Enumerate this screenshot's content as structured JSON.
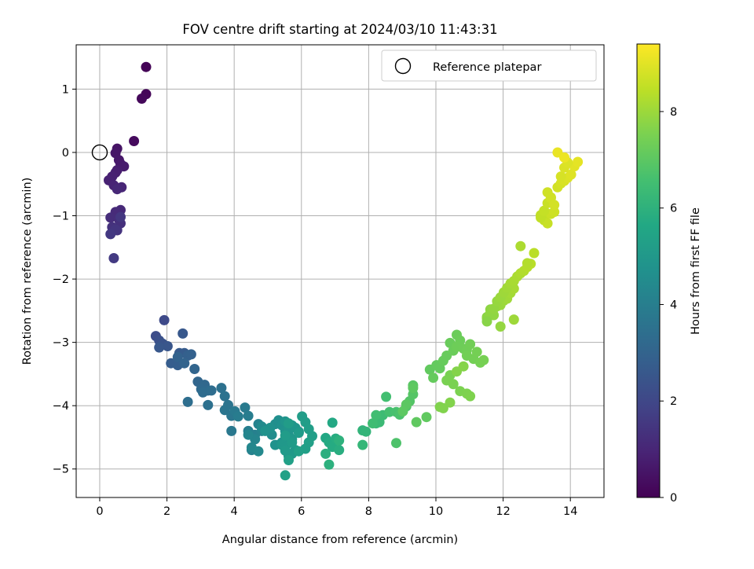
{
  "chart_data": {
    "type": "scatter",
    "title": "FOV centre drift starting at 2024/03/10 11:43:31",
    "xlabel": "Angular distance from reference (arcmin)",
    "ylabel": "Rotation from reference (arcmin)",
    "xlim": [
      -0.7,
      15.0
    ],
    "ylim": [
      -5.45,
      1.7
    ],
    "xticks": [
      0,
      2,
      4,
      6,
      8,
      10,
      12,
      14
    ],
    "yticks": [
      1,
      0,
      -1,
      -2,
      -3,
      -4,
      -5
    ],
    "grid": true,
    "legend": {
      "position": "upper-right",
      "entries": [
        {
          "label": "Reference platepar",
          "marker": "open-circle"
        }
      ]
    },
    "reference_point": {
      "x": 0,
      "y": 0
    },
    "colorbar": {
      "label": "Hours from first FF file",
      "colormap": "viridis",
      "min": 0,
      "max": 9.4,
      "ticks": [
        0,
        2,
        4,
        6,
        8
      ]
    },
    "series": [
      {
        "x": [
          1.38,
          1.38,
          1.25,
          1.02,
          0.52,
          0.47,
          0.57,
          0.62,
          0.72,
          0.52,
          0.47,
          0.37,
          0.27,
          0.42,
          0.65,
          0.52,
          0.62,
          0.47,
          0.32,
          0.57,
          0.62,
          0.37,
          0.52,
          0.47,
          0.62,
          0.32,
          0.42,
          1.92,
          1.67,
          1.77,
          1.87,
          2.02,
          1.77,
          2.47,
          2.37,
          2.52,
          2.12,
          2.32,
          2.62,
          2.72,
          2.32,
          2.52,
          2.82,
          2.92,
          3.12,
          3.02,
          3.22,
          3.07,
          3.32,
          2.62,
          3.22,
          3.62,
          3.72,
          3.82,
          3.72,
          3.92,
          3.92,
          4.02,
          4.32,
          4.12,
          4.42,
          4.42,
          4.62,
          4.52,
          4.72,
          4.82,
          4.62,
          4.42,
          4.52,
          4.72,
          4.82,
          5.02,
          5.12,
          5.22,
          5.32,
          5.42,
          5.07,
          4.92,
          5.22,
          5.42,
          5.52,
          5.62,
          5.72,
          5.52,
          5.62,
          5.82,
          5.92,
          5.72,
          5.62,
          5.42,
          5.52,
          5.82,
          5.72,
          5.62,
          5.52,
          5.92,
          5.72,
          5.52,
          5.62,
          6.02,
          6.12,
          6.22,
          6.32,
          6.22,
          6.12,
          5.92,
          5.62,
          5.52,
          6.72,
          6.92,
          6.82,
          6.92,
          7.02,
          7.12,
          6.72,
          6.82,
          7.12,
          7.82,
          7.92,
          7.82,
          8.22,
          8.32,
          8.42,
          8.12,
          8.22,
          8.52,
          8.62,
          8.82,
          8.92,
          8.82,
          9.12,
          9.22,
          9.32,
          9.32,
          9.12,
          9.02,
          9.32,
          9.42,
          9.72,
          9.82,
          10.02,
          10.12,
          9.92,
          10.22,
          10.32,
          10.42,
          10.52,
          10.62,
          10.72,
          10.62,
          10.82,
          10.92,
          11.02,
          10.92,
          11.12,
          11.22,
          11.32,
          11.42,
          10.42,
          10.32,
          10.52,
          10.72,
          10.92,
          11.02,
          10.12,
          10.22,
          10.42,
          10.62,
          10.82,
          11.52,
          11.62,
          11.72,
          11.82,
          11.92,
          12.02,
          12.12,
          12.22,
          12.32,
          11.52,
          11.62,
          11.72,
          11.82,
          11.92,
          12.02,
          12.12,
          12.22,
          12.32,
          12.42,
          12.52,
          12.62,
          12.72,
          12.82,
          12.52,
          12.72,
          12.92,
          11.52,
          11.92,
          12.32,
          13.12,
          13.22,
          13.32,
          13.42,
          13.52,
          13.12,
          13.22,
          13.32,
          13.42,
          13.62,
          13.72,
          13.82,
          13.92,
          14.02,
          14.12,
          14.22,
          13.72,
          13.82,
          13.92,
          13.62,
          13.82,
          13.32,
          13.42,
          13.52
        ],
        "y": [
          1.35,
          0.92,
          0.85,
          0.18,
          0.06,
          -0.01,
          -0.12,
          -0.18,
          -0.22,
          -0.28,
          -0.32,
          -0.38,
          -0.44,
          -0.52,
          -0.55,
          -0.58,
          -0.91,
          -0.94,
          -1.03,
          -1.06,
          -1.12,
          -1.18,
          -1.23,
          -1.22,
          -1.02,
          -1.29,
          -1.67,
          -2.65,
          -2.9,
          -2.97,
          -3.02,
          -3.06,
          -3.08,
          -2.86,
          -3.17,
          -3.17,
          -3.33,
          -3.36,
          -3.21,
          -3.19,
          -3.23,
          -3.33,
          -3.42,
          -3.62,
          -3.67,
          -3.74,
          -3.76,
          -3.79,
          -3.76,
          -3.94,
          -3.99,
          -3.72,
          -3.85,
          -3.99,
          -4.07,
          -4.16,
          -4.4,
          -4.09,
          -4.03,
          -4.17,
          -4.16,
          -4.4,
          -4.46,
          -4.7,
          -4.29,
          -4.4,
          -4.53,
          -4.46,
          -4.66,
          -4.72,
          -4.33,
          -4.4,
          -4.46,
          -4.29,
          -4.23,
          -4.31,
          -4.35,
          -4.4,
          -4.62,
          -4.58,
          -4.4,
          -4.46,
          -4.31,
          -4.25,
          -4.36,
          -4.35,
          -4.41,
          -4.53,
          -4.59,
          -4.62,
          -4.66,
          -4.7,
          -4.76,
          -4.8,
          -4.71,
          -4.43,
          -4.58,
          -4.47,
          -4.28,
          -4.17,
          -4.26,
          -4.37,
          -4.48,
          -4.58,
          -4.68,
          -4.72,
          -4.86,
          -5.1,
          -4.51,
          -4.27,
          -4.58,
          -4.65,
          -4.52,
          -4.7,
          -4.76,
          -4.93,
          -4.55,
          -4.39,
          -4.41,
          -4.62,
          -4.28,
          -4.26,
          -4.15,
          -4.28,
          -4.15,
          -3.86,
          -4.1,
          -4.1,
          -4.14,
          -4.59,
          -4.01,
          -3.93,
          -3.82,
          -3.68,
          -3.98,
          -4.09,
          -3.72,
          -4.26,
          -4.18,
          -3.43,
          -3.36,
          -3.41,
          -3.56,
          -3.29,
          -3.21,
          -3.01,
          -3.13,
          -2.88,
          -2.97,
          -3.07,
          -3.1,
          -3.12,
          -3.03,
          -3.21,
          -3.26,
          -3.15,
          -3.32,
          -3.28,
          -3.52,
          -3.6,
          -3.66,
          -3.77,
          -3.81,
          -3.85,
          -4.02,
          -4.04,
          -3.95,
          -3.46,
          -3.38,
          -2.6,
          -2.48,
          -2.57,
          -2.43,
          -2.41,
          -2.34,
          -2.31,
          -2.22,
          -2.15,
          -2.62,
          -2.54,
          -2.47,
          -2.35,
          -2.29,
          -2.21,
          -2.14,
          -2.07,
          -2.03,
          -1.96,
          -1.91,
          -1.87,
          -1.81,
          -1.76,
          -1.48,
          -1.75,
          -1.59,
          -2.67,
          -2.75,
          -2.64,
          -0.99,
          -1.07,
          -1.12,
          -0.97,
          -0.94,
          -1.03,
          -0.92,
          -0.8,
          -0.71,
          -0.55,
          -0.49,
          -0.45,
          -0.4,
          -0.35,
          -0.22,
          -0.15,
          -0.38,
          -0.24,
          -0.16,
          0.0,
          -0.08,
          -0.63,
          -0.72,
          -0.83
        ],
        "hours": [
          0.05,
          0.12,
          0.18,
          0.25,
          0.5,
          0.55,
          0.6,
          0.65,
          0.7,
          0.75,
          0.8,
          0.85,
          0.9,
          0.95,
          1.0,
          1.05,
          1.1,
          1.15,
          1.2,
          1.25,
          1.3,
          1.35,
          1.4,
          1.45,
          1.5,
          1.55,
          1.6,
          2.1,
          2.2,
          2.3,
          2.4,
          2.5,
          2.55,
          2.6,
          2.65,
          2.7,
          2.75,
          2.8,
          2.85,
          2.9,
          2.95,
          3.0,
          3.05,
          3.1,
          3.15,
          3.2,
          3.25,
          3.3,
          3.35,
          3.4,
          3.45,
          3.5,
          3.55,
          3.6,
          3.65,
          3.7,
          3.75,
          3.8,
          3.85,
          3.9,
          3.95,
          4.0,
          4.05,
          4.1,
          4.15,
          4.2,
          4.25,
          4.3,
          4.35,
          4.4,
          4.45,
          4.5,
          4.55,
          4.6,
          4.65,
          4.7,
          4.72,
          4.74,
          4.76,
          4.78,
          4.8,
          4.82,
          4.84,
          4.86,
          4.88,
          4.9,
          4.92,
          4.94,
          4.96,
          4.98,
          5.0,
          5.02,
          5.04,
          5.06,
          5.08,
          5.1,
          5.12,
          5.14,
          5.16,
          5.18,
          5.2,
          5.22,
          5.24,
          5.26,
          5.28,
          5.3,
          5.32,
          5.34,
          5.6,
          5.65,
          5.7,
          5.75,
          5.8,
          5.85,
          5.9,
          5.95,
          6.0,
          6.1,
          6.15,
          6.2,
          6.3,
          6.35,
          6.4,
          6.45,
          6.5,
          6.55,
          6.6,
          6.65,
          6.7,
          6.75,
          6.8,
          6.85,
          6.9,
          6.95,
          7.0,
          7.02,
          7.04,
          7.06,
          7.08,
          7.1,
          7.12,
          7.14,
          7.16,
          7.18,
          7.2,
          7.22,
          7.24,
          7.26,
          7.28,
          7.3,
          7.32,
          7.34,
          7.36,
          7.38,
          7.4,
          7.42,
          7.44,
          7.46,
          7.48,
          7.5,
          7.52,
          7.54,
          7.56,
          7.58,
          7.6,
          7.62,
          7.64,
          7.66,
          7.68,
          7.75,
          7.8,
          7.85,
          7.9,
          7.95,
          8.0,
          8.05,
          8.1,
          8.15,
          7.78,
          7.82,
          7.87,
          7.92,
          7.97,
          8.02,
          8.07,
          8.12,
          8.17,
          8.2,
          8.25,
          8.3,
          8.35,
          8.4,
          8.22,
          8.32,
          8.42,
          7.72,
          7.88,
          8.02,
          8.5,
          8.55,
          8.6,
          8.65,
          8.7,
          8.52,
          8.57,
          8.62,
          8.67,
          8.75,
          8.8,
          8.85,
          8.9,
          8.95,
          9.0,
          9.05,
          8.82,
          8.88,
          8.92,
          9.1,
          9.15,
          8.72,
          8.74,
          8.78
        ]
      }
    ]
  }
}
